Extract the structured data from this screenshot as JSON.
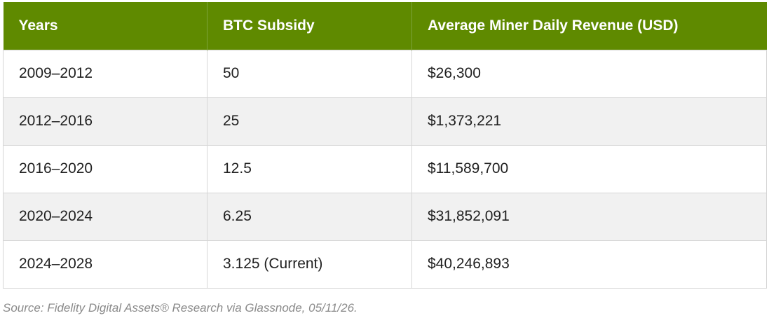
{
  "chart_data": {
    "type": "table",
    "columns": [
      "Years",
      "BTC Subsidy",
      "Average Miner Daily Revenue (USD)"
    ],
    "rows": [
      [
        "2009–2012",
        "50",
        "$26,300"
      ],
      [
        "2012–2016",
        "25",
        "$1,373,221"
      ],
      [
        "2016–2020",
        "12.5",
        "$11,589,700"
      ],
      [
        "2020–2024",
        "6.25",
        "$31,852,091"
      ],
      [
        "2024–2028",
        "3.125 (Current)",
        "$40,246,893"
      ]
    ],
    "source": "Source: Fidelity Digital Assets® Research via Glassnode, 05/11/26."
  },
  "colors": {
    "header_background": "#5f8a00",
    "header_text": "#ffffff",
    "striped_row": "#f1f1f1",
    "border": "#d6d6d6"
  }
}
